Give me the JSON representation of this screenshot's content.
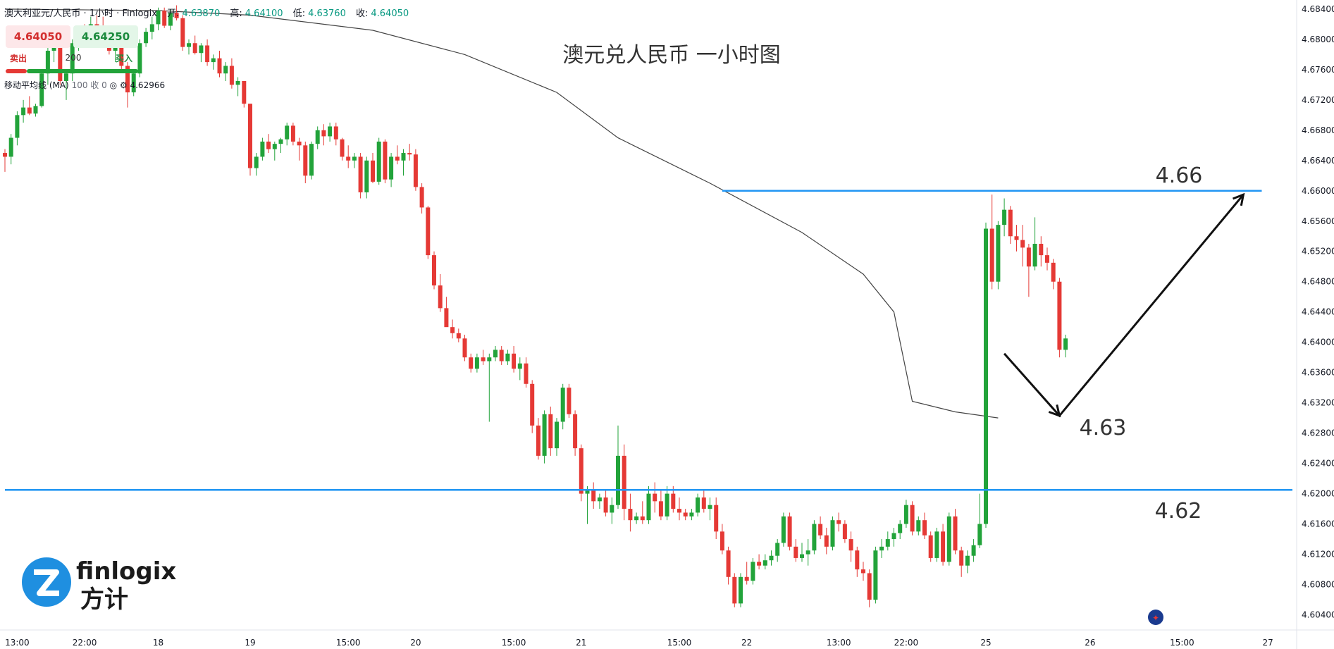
{
  "header": {
    "symbol": "澳大利亚元/人民币 · 1小时 · Finlogix",
    "open_label": "开:",
    "open": "4.63870",
    "high_label": "高:",
    "high": "4.64100",
    "low_label": "低:",
    "low": "4.63760",
    "close_label": "收:",
    "close": "4.64050"
  },
  "trade": {
    "sell_price": "4.64050",
    "buy_price": "4.64250",
    "sell_label": "卖出",
    "buy_label": "买入",
    "quantity": "200"
  },
  "indicator": {
    "name": "移动平均线 (MA)",
    "params": "100 收 0",
    "value": "4.62966"
  },
  "logo": {
    "brand": "finlogix",
    "brand_cn": "方计"
  },
  "colors": {
    "up": "#22a33a",
    "down": "#e53935",
    "level": "#2196f3",
    "ma": "#444444",
    "arrow": "#111111"
  },
  "chart_data": {
    "type": "candlestick",
    "title": "澳元兑人民币 一小时图",
    "y_axis_ticks": [
      "4.68400",
      "4.68000",
      "4.67600",
      "4.67200",
      "4.66800",
      "4.66400",
      "4.66000",
      "4.65600",
      "4.65200",
      "4.64800",
      "4.64400",
      "4.64000",
      "4.63600",
      "4.63200",
      "4.62800",
      "4.62400",
      "4.62000",
      "4.61600",
      "4.61200",
      "4.60800",
      "4.60400"
    ],
    "ylim": [
      4.602,
      4.6852
    ],
    "x_axis_ticks": [
      "13:00",
      "22:00",
      "18",
      "19",
      "15:00",
      "20",
      "15:00",
      "21",
      "15:00",
      "22",
      "13:00",
      "22:00",
      "25",
      "26",
      "15:00",
      "27"
    ],
    "x_tick_candle_index": [
      2,
      13,
      25,
      40,
      56,
      67,
      83,
      94,
      110,
      121,
      136,
      147,
      160,
      177,
      192,
      206
    ],
    "levels": [
      {
        "value": 4.66,
        "label": "4.66",
        "from_index": 117,
        "to_index": 205
      },
      {
        "value": 4.6205,
        "label": "4.62",
        "from_index": 0,
        "to_index": 210
      }
    ],
    "annotations": [
      {
        "label": "4.63",
        "value": 4.63
      }
    ],
    "projection": [
      {
        "index": 163,
        "value": 4.6385
      },
      {
        "index": 172,
        "value": 4.6303
      },
      {
        "index": 202,
        "value": 4.6595
      }
    ],
    "ma_series": [
      [
        0,
        4.684
      ],
      [
        25,
        4.6838
      ],
      [
        40,
        4.6832
      ],
      [
        60,
        4.6812
      ],
      [
        75,
        4.678
      ],
      [
        90,
        4.673
      ],
      [
        100,
        4.667
      ],
      [
        115,
        4.661
      ],
      [
        130,
        4.6545
      ],
      [
        140,
        4.649
      ],
      [
        145,
        4.644
      ],
      [
        148,
        4.6322
      ],
      [
        155,
        4.6308
      ],
      [
        162,
        4.63
      ]
    ],
    "candles": [
      [
        4.665,
        4.6655,
        4.6625,
        4.6645
      ],
      [
        4.6645,
        4.6675,
        4.6635,
        4.667
      ],
      [
        4.667,
        4.6705,
        4.666,
        4.67
      ],
      [
        4.67,
        4.672,
        4.669,
        4.671
      ],
      [
        4.671,
        4.6725,
        4.67,
        4.6702
      ],
      [
        4.6702,
        4.6715,
        4.6698,
        4.6712
      ],
      [
        4.6712,
        4.676,
        4.671,
        4.6755
      ],
      [
        4.6755,
        4.679,
        4.674,
        4.6785
      ],
      [
        4.6785,
        4.68,
        4.677,
        4.679
      ],
      [
        4.679,
        4.6795,
        4.674,
        4.6745
      ],
      [
        4.6745,
        4.676,
        4.672,
        4.6755
      ],
      [
        4.6755,
        4.68,
        4.6745,
        4.6795
      ],
      [
        4.6795,
        4.6812,
        4.6785,
        4.6808
      ],
      [
        4.6808,
        4.682,
        4.679,
        4.6795
      ],
      [
        4.6795,
        4.683,
        4.679,
        4.682
      ],
      [
        4.682,
        4.6832,
        4.681,
        4.6815
      ],
      [
        4.6815,
        4.683,
        4.68,
        4.6808
      ],
      [
        4.6808,
        4.6815,
        4.678,
        4.6785
      ],
      [
        4.6785,
        4.68,
        4.677,
        4.6795
      ],
      [
        4.6795,
        4.68,
        4.676,
        4.6765
      ],
      [
        4.6765,
        4.677,
        4.671,
        4.673
      ],
      [
        4.673,
        4.676,
        4.6725,
        4.6755
      ],
      [
        4.6755,
        4.68,
        4.675,
        4.6795
      ],
      [
        4.6795,
        4.6815,
        4.679,
        4.681
      ],
      [
        4.681,
        4.683,
        4.68,
        4.682
      ],
      [
        4.682,
        4.6842,
        4.6812,
        4.6838
      ],
      [
        4.6838,
        4.6842,
        4.6815,
        4.6818
      ],
      [
        4.6818,
        4.684,
        4.6812,
        4.6835
      ],
      [
        4.6835,
        4.6845,
        4.6825,
        4.6828
      ],
      [
        4.6828,
        4.6832,
        4.6785,
        4.679
      ],
      [
        4.679,
        4.68,
        4.678,
        4.6795
      ],
      [
        4.6795,
        4.6805,
        4.678,
        4.6782
      ],
      [
        4.6782,
        4.6795,
        4.677,
        4.6792
      ],
      [
        4.6792,
        4.68,
        4.6765,
        4.677
      ],
      [
        4.677,
        4.678,
        4.676,
        4.6775
      ],
      [
        4.6775,
        4.6785,
        4.675,
        4.6755
      ],
      [
        4.6755,
        4.677,
        4.6745,
        4.6765
      ],
      [
        4.6765,
        4.6775,
        4.6735,
        4.674
      ],
      [
        4.674,
        4.675,
        4.6725,
        4.6745
      ],
      [
        4.6745,
        4.6745,
        4.671,
        4.6715
      ],
      [
        4.6715,
        4.6715,
        4.662,
        4.663
      ],
      [
        4.663,
        4.665,
        4.662,
        4.6645
      ],
      [
        4.6645,
        4.667,
        4.664,
        4.6665
      ],
      [
        4.6665,
        4.6675,
        4.665,
        4.6655
      ],
      [
        4.6655,
        4.6665,
        4.664,
        4.6662
      ],
      [
        4.6662,
        4.667,
        4.665,
        4.6668
      ],
      [
        4.6668,
        4.669,
        4.666,
        4.6686
      ],
      [
        4.6686,
        4.669,
        4.666,
        4.6665
      ],
      [
        4.6665,
        4.667,
        4.664,
        4.666
      ],
      [
        4.666,
        4.6665,
        4.661,
        4.662
      ],
      [
        4.662,
        4.6665,
        4.6615,
        4.6662
      ],
      [
        4.6662,
        4.6685,
        4.6655,
        4.668
      ],
      [
        4.668,
        4.6688,
        4.666,
        4.6672
      ],
      [
        4.6672,
        4.669,
        4.6665,
        4.6685
      ],
      [
        4.6685,
        4.669,
        4.666,
        4.6668
      ],
      [
        4.6668,
        4.667,
        4.664,
        4.6645
      ],
      [
        4.6645,
        4.666,
        4.663,
        4.664
      ],
      [
        4.664,
        4.665,
        4.663,
        4.6645
      ],
      [
        4.6645,
        4.665,
        4.659,
        4.6598
      ],
      [
        4.6598,
        4.6645,
        4.659,
        4.664
      ],
      [
        4.664,
        4.665,
        4.661,
        4.6612
      ],
      [
        4.6612,
        4.667,
        4.6608,
        4.6665
      ],
      [
        4.6665,
        4.6668,
        4.661,
        4.6615
      ],
      [
        4.6615,
        4.665,
        4.6605,
        4.6645
      ],
      [
        4.6645,
        4.666,
        4.6635,
        4.664
      ],
      [
        4.664,
        4.6655,
        4.662,
        4.665
      ],
      [
        4.665,
        4.6662,
        4.664,
        4.6648
      ],
      [
        4.6648,
        4.6655,
        4.66,
        4.6605
      ],
      [
        4.6605,
        4.661,
        4.657,
        4.6578
      ],
      [
        4.6578,
        4.658,
        4.651,
        4.6515
      ],
      [
        4.6515,
        4.652,
        4.647,
        4.6475
      ],
      [
        4.6475,
        4.649,
        4.644,
        4.6445
      ],
      [
        4.6445,
        4.646,
        4.6425,
        4.642
      ],
      [
        4.642,
        4.643,
        4.6405,
        4.6412
      ],
      [
        4.6412,
        4.6418,
        4.64,
        4.6405
      ],
      [
        4.6405,
        4.641,
        4.6375,
        4.638
      ],
      [
        4.638,
        4.6385,
        4.636,
        4.6365
      ],
      [
        4.6365,
        4.6385,
        4.636,
        4.638
      ],
      [
        4.638,
        4.639,
        4.637,
        4.6375
      ],
      [
        4.6375,
        4.6385,
        4.6295,
        4.638
      ],
      [
        4.638,
        4.6395,
        4.6375,
        4.639
      ],
      [
        4.639,
        4.6395,
        4.637,
        4.6375
      ],
      [
        4.6375,
        4.639,
        4.637,
        4.6385
      ],
      [
        4.6385,
        4.6395,
        4.636,
        4.6365
      ],
      [
        4.6365,
        4.638,
        4.635,
        4.6372
      ],
      [
        4.6372,
        4.638,
        4.634,
        4.6345
      ],
      [
        4.6345,
        4.635,
        4.628,
        4.629
      ],
      [
        4.629,
        4.63,
        4.6245,
        4.625
      ],
      [
        4.625,
        4.631,
        4.624,
        4.6305
      ],
      [
        4.6305,
        4.6315,
        4.625,
        4.626
      ],
      [
        4.626,
        4.63,
        4.625,
        4.6295
      ],
      [
        4.6295,
        4.6345,
        4.6285,
        4.634
      ],
      [
        4.634,
        4.6345,
        4.63,
        4.6305
      ],
      [
        4.6305,
        4.631,
        4.625,
        4.626
      ],
      [
        4.626,
        4.6265,
        4.619,
        4.62
      ],
      [
        4.62,
        4.621,
        4.616,
        4.6205
      ],
      [
        4.6205,
        4.6215,
        4.618,
        4.619
      ],
      [
        4.619,
        4.62,
        4.618,
        4.6195
      ],
      [
        4.6195,
        4.6205,
        4.617,
        4.6175
      ],
      [
        4.6175,
        4.6195,
        4.616,
        4.6185
      ],
      [
        4.6185,
        4.629,
        4.618,
        4.625
      ],
      [
        4.625,
        4.6265,
        4.6165,
        4.618
      ],
      [
        4.618,
        4.62,
        4.615,
        4.6165
      ],
      [
        4.6165,
        4.6175,
        4.616,
        4.617
      ],
      [
        4.617,
        4.619,
        4.616,
        4.6165
      ],
      [
        4.6165,
        4.621,
        4.616,
        4.62
      ],
      [
        4.62,
        4.6215,
        4.6175,
        4.619
      ],
      [
        4.619,
        4.6205,
        4.6165,
        4.617
      ],
      [
        4.617,
        4.621,
        4.6165,
        4.62
      ],
      [
        4.62,
        4.621,
        4.6175,
        4.618
      ],
      [
        4.618,
        4.6195,
        4.6165,
        4.6175
      ],
      [
        4.6175,
        4.618,
        4.6165,
        4.617
      ],
      [
        4.617,
        4.618,
        4.6165,
        4.6175
      ],
      [
        4.6175,
        4.62,
        4.617,
        4.6195
      ],
      [
        4.6195,
        4.6205,
        4.6175,
        4.618
      ],
      [
        4.618,
        4.6195,
        4.6165,
        4.6185
      ],
      [
        4.6185,
        4.6195,
        4.614,
        4.615
      ],
      [
        4.615,
        4.616,
        4.612,
        4.6125
      ],
      [
        4.6125,
        4.613,
        4.608,
        4.609
      ],
      [
        4.609,
        4.6095,
        4.605,
        4.6055
      ],
      [
        4.6055,
        4.6095,
        4.605,
        4.609
      ],
      [
        4.609,
        4.611,
        4.608,
        4.6085
      ],
      [
        4.6085,
        4.6115,
        4.608,
        4.611
      ],
      [
        4.611,
        4.612,
        4.61,
        4.6105
      ],
      [
        4.6105,
        4.612,
        4.61,
        4.6112
      ],
      [
        4.6112,
        4.6125,
        4.6105,
        4.6118
      ],
      [
        4.6118,
        4.614,
        4.611,
        4.6135
      ],
      [
        4.6135,
        4.6175,
        4.613,
        4.617
      ],
      [
        4.617,
        4.6175,
        4.6125,
        4.613
      ],
      [
        4.613,
        4.614,
        4.611,
        4.6115
      ],
      [
        4.6115,
        4.6135,
        4.611,
        4.612
      ],
      [
        4.612,
        4.614,
        4.6105,
        4.6125
      ],
      [
        4.6125,
        4.6165,
        4.612,
        4.616
      ],
      [
        4.616,
        4.617,
        4.614,
        4.6145
      ],
      [
        4.6145,
        4.6155,
        4.612,
        4.613
      ],
      [
        4.613,
        4.617,
        4.6125,
        4.6165
      ],
      [
        4.6165,
        4.6175,
        4.615,
        4.616
      ],
      [
        4.616,
        4.6165,
        4.6135,
        4.614
      ],
      [
        4.614,
        4.615,
        4.611,
        4.6125
      ],
      [
        4.6125,
        4.613,
        4.609,
        4.61
      ],
      [
        4.61,
        4.611,
        4.6085,
        4.6095
      ],
      [
        4.6095,
        4.61,
        4.605,
        4.606
      ],
      [
        4.606,
        4.613,
        4.6055,
        4.6125
      ],
      [
        4.6125,
        4.614,
        4.6115,
        4.613
      ],
      [
        4.613,
        4.615,
        4.6125,
        4.614
      ],
      [
        4.614,
        4.6155,
        4.613,
        4.6148
      ],
      [
        4.6148,
        4.6165,
        4.614,
        4.616
      ],
      [
        4.616,
        4.6192,
        4.6155,
        4.6185
      ],
      [
        4.6185,
        4.619,
        4.6145,
        4.615
      ],
      [
        4.615,
        4.617,
        4.6145,
        4.6165
      ],
      [
        4.6165,
        4.6175,
        4.614,
        4.6145
      ],
      [
        4.6145,
        4.615,
        4.611,
        4.6115
      ],
      [
        4.6115,
        4.6155,
        4.611,
        4.615
      ],
      [
        4.615,
        4.616,
        4.6105,
        4.611
      ],
      [
        4.611,
        4.6175,
        4.6105,
        4.617
      ],
      [
        4.617,
        4.618,
        4.612,
        4.6125
      ],
      [
        4.6125,
        4.613,
        4.609,
        4.6105
      ],
      [
        4.6105,
        4.6125,
        4.6095,
        4.6118
      ],
      [
        4.6118,
        4.614,
        4.611,
        4.6132
      ],
      [
        4.6132,
        4.62,
        4.6128,
        4.616
      ],
      [
        4.616,
        4.6558,
        4.6155,
        4.655
      ],
      [
        4.655,
        4.6595,
        4.647,
        4.648
      ],
      [
        4.648,
        4.656,
        4.647,
        4.6555
      ],
      [
        4.6555,
        4.659,
        4.654,
        4.6575
      ],
      [
        4.6575,
        4.658,
        4.653,
        4.654
      ],
      [
        4.654,
        4.6555,
        4.652,
        4.6535
      ],
      [
        4.6535,
        4.6555,
        4.65,
        4.6525
      ],
      [
        4.6525,
        4.653,
        4.646,
        4.65
      ],
      [
        4.65,
        4.6565,
        4.6495,
        4.653
      ],
      [
        4.653,
        4.654,
        4.65,
        4.6515
      ],
      [
        4.6515,
        4.6525,
        4.6495,
        4.6505
      ],
      [
        4.6505,
        4.651,
        4.647,
        4.648
      ],
      [
        4.648,
        4.6485,
        4.638,
        4.639
      ],
      [
        4.639,
        4.641,
        4.638,
        4.6405
      ]
    ]
  }
}
